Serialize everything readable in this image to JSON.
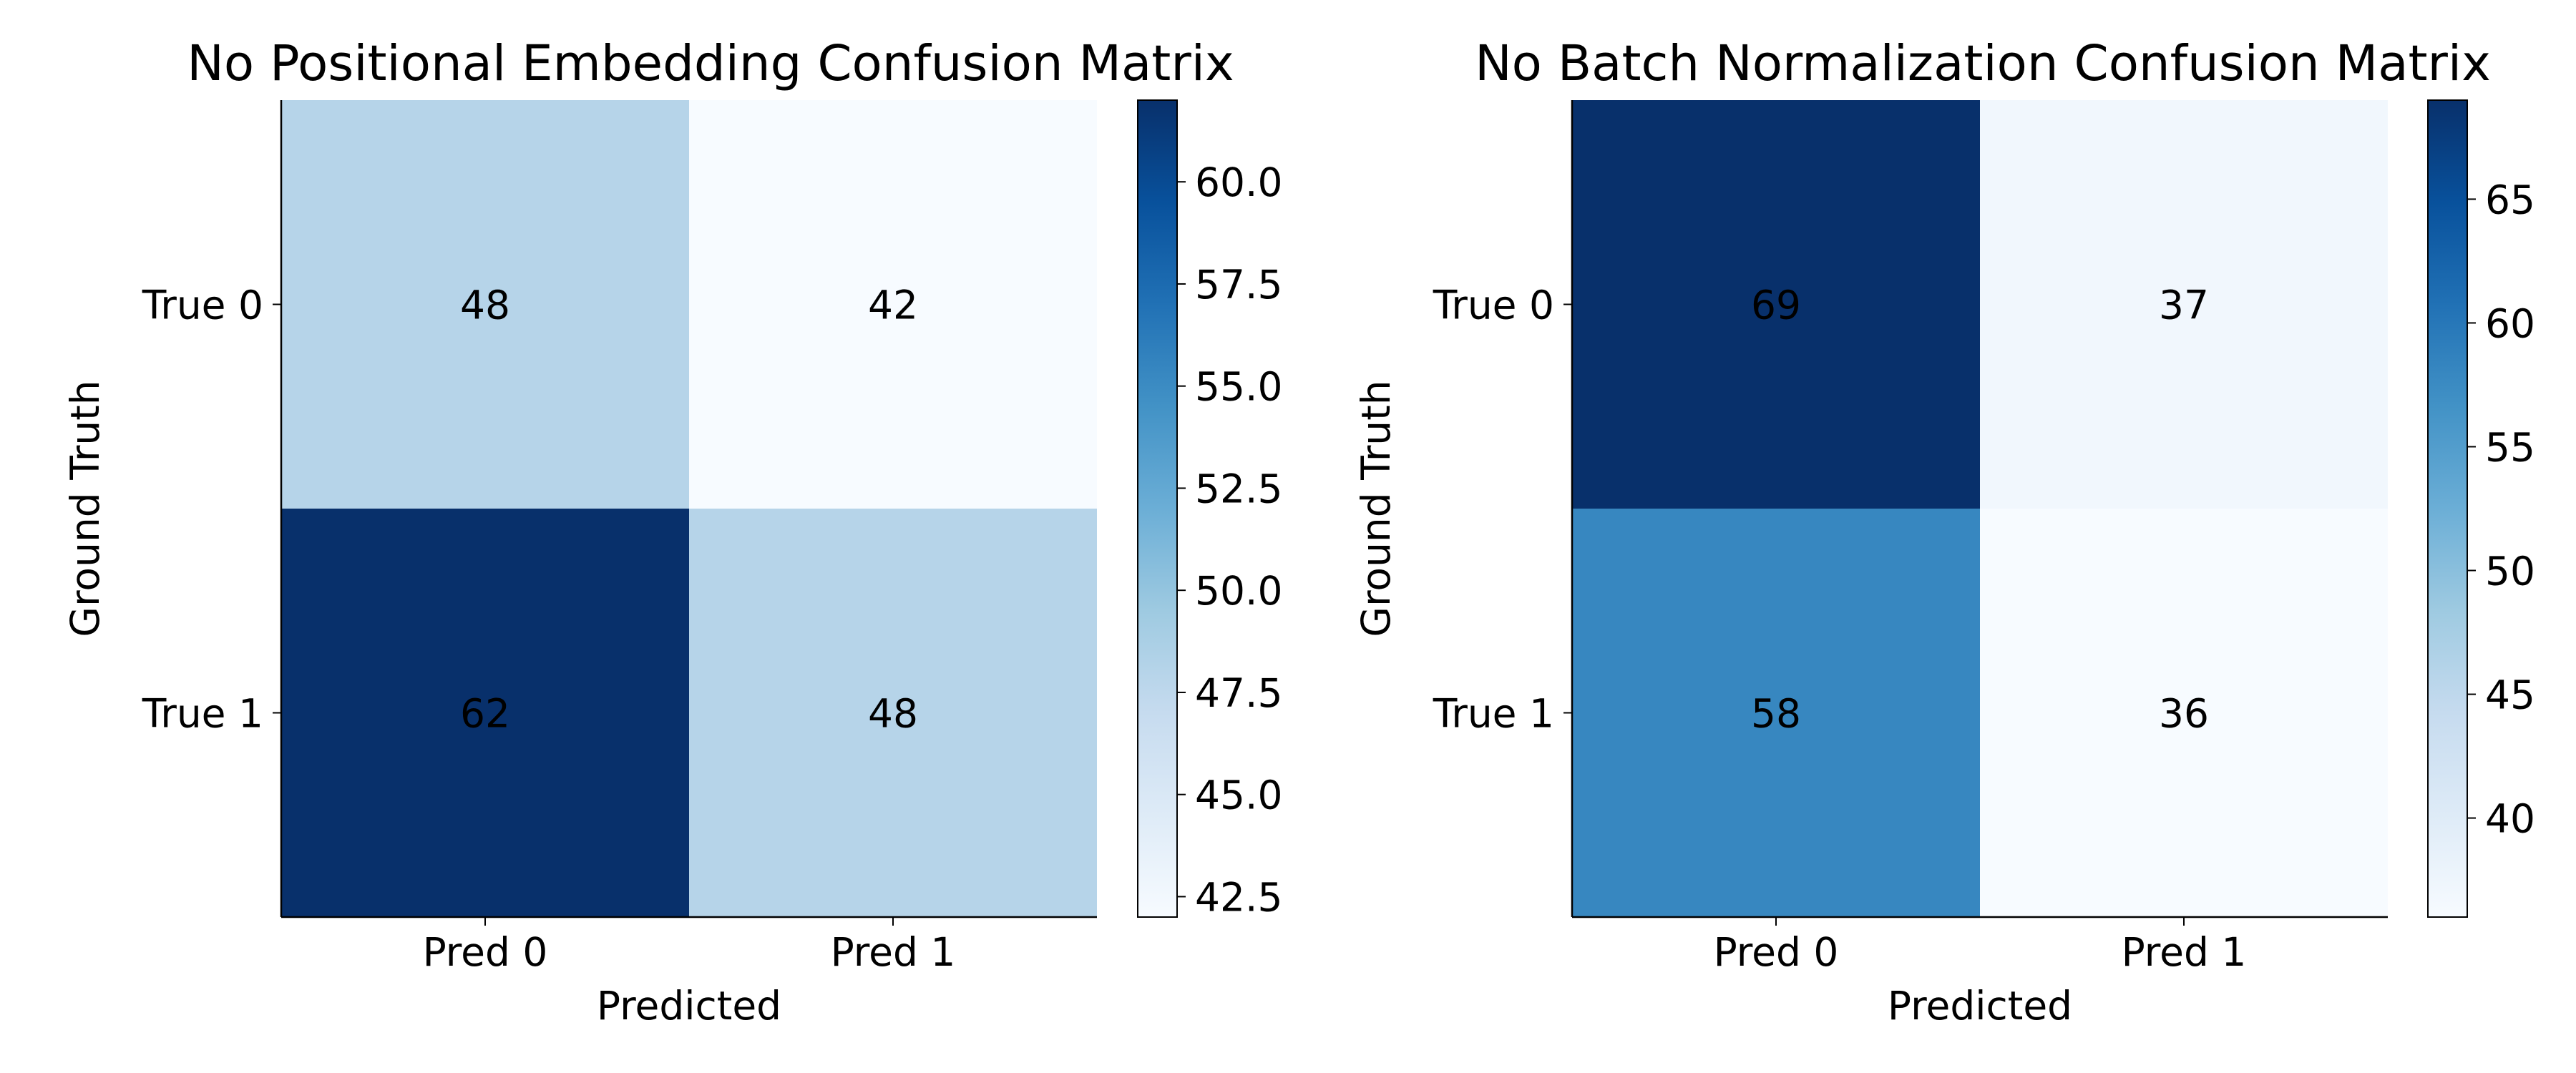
{
  "chart_data": [
    {
      "type": "heatmap",
      "title": "No Positional Embedding Confusion Matrix",
      "xlabel": "Predicted",
      "ylabel": "Ground Truth",
      "x_categories": [
        "Pred 0",
        "Pred 1"
      ],
      "y_categories": [
        "True 0",
        "True 1"
      ],
      "values": [
        [
          48,
          42
        ],
        [
          62,
          48
        ]
      ],
      "colormap": "Blues",
      "colorbar": {
        "range": [
          42,
          62
        ],
        "ticks": [
          42.5,
          45.0,
          47.5,
          50.0,
          52.5,
          55.0,
          57.5,
          60.0
        ],
        "tick_labels": [
          "42.5",
          "45.0",
          "47.5",
          "50.0",
          "52.5",
          "55.0",
          "57.5",
          "60.0"
        ]
      },
      "grid": false
    },
    {
      "type": "heatmap",
      "title": "No Batch Normalization Confusion Matrix",
      "xlabel": "Predicted",
      "ylabel": "Ground Truth",
      "x_categories": [
        "Pred 0",
        "Pred 1"
      ],
      "y_categories": [
        "True 0",
        "True 1"
      ],
      "values": [
        [
          69,
          37
        ],
        [
          58,
          36
        ]
      ],
      "colormap": "Blues",
      "colorbar": {
        "range": [
          36,
          69
        ],
        "ticks": [
          40,
          45,
          50,
          55,
          60,
          65
        ],
        "tick_labels": [
          "40",
          "45",
          "50",
          "55",
          "60",
          "65"
        ]
      },
      "grid": false
    }
  ]
}
